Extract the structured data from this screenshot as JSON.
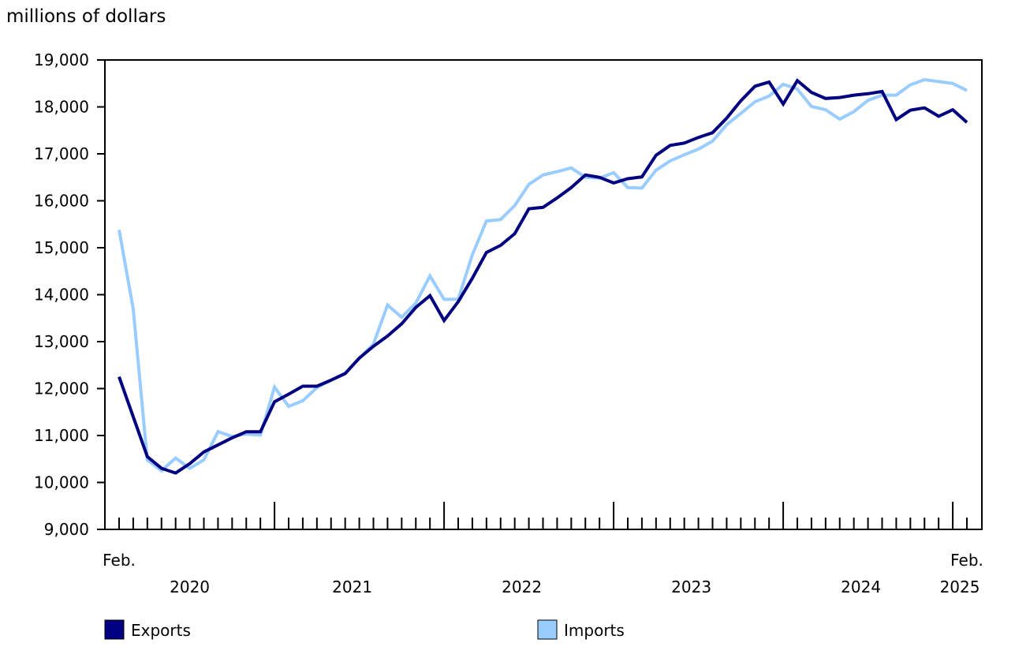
{
  "chart_data": {
    "type": "line",
    "ylabel": "millions of dollars",
    "ylim": [
      9000,
      19000
    ],
    "yticks": [
      9000,
      10000,
      11000,
      12000,
      13000,
      14000,
      15000,
      16000,
      17000,
      18000,
      19000
    ],
    "ytick_labels": [
      "9,000",
      "10,000",
      "11,000",
      "12,000",
      "13,000",
      "14,000",
      "15,000",
      "16,000",
      "17,000",
      "18,000",
      "19,000"
    ],
    "x_start": "2020-02",
    "x_end": "2025-02",
    "x_edge_labels": [
      "Feb.",
      "Feb."
    ],
    "year_labels": [
      "2020",
      "2021",
      "2022",
      "2023",
      "2024",
      "2025"
    ],
    "grid": false,
    "legend_position": "bottom",
    "series": [
      {
        "name": "Exports",
        "color": "#000080",
        "values": [
          12250,
          11400,
          10550,
          10300,
          10200,
          10400,
          10650,
          10800,
          10950,
          11080,
          11080,
          11720,
          11880,
          12050,
          12050,
          12180,
          12320,
          12650,
          12900,
          13120,
          13380,
          13730,
          13980,
          13450,
          13850,
          14350,
          14900,
          15050,
          15300,
          15830,
          15860,
          16060,
          16280,
          16550,
          16500,
          16380,
          16470,
          16510,
          16970,
          17180,
          17230,
          17350,
          17450,
          17760,
          18130,
          18440,
          18530,
          18060,
          18560,
          18310,
          18180,
          18200,
          18250,
          18280,
          18330,
          17730,
          17930,
          17980,
          17800,
          17940,
          17670
        ]
      },
      {
        "name": "Imports",
        "color": "#99ccff",
        "values": [
          15380,
          13700,
          10480,
          10250,
          10520,
          10300,
          10480,
          11080,
          10980,
          11030,
          11010,
          12030,
          11620,
          11740,
          12020,
          12180,
          12330,
          12640,
          12950,
          13780,
          13520,
          13820,
          14400,
          13900,
          13900,
          14850,
          15570,
          15600,
          15900,
          16350,
          16550,
          16620,
          16700,
          16500,
          16480,
          16600,
          16280,
          16270,
          16650,
          16850,
          16980,
          17100,
          17270,
          17620,
          17860,
          18110,
          18230,
          18480,
          18380,
          18010,
          17940,
          17740,
          17900,
          18140,
          18250,
          18250,
          18470,
          18580,
          18540,
          18500,
          18350
        ]
      }
    ]
  }
}
